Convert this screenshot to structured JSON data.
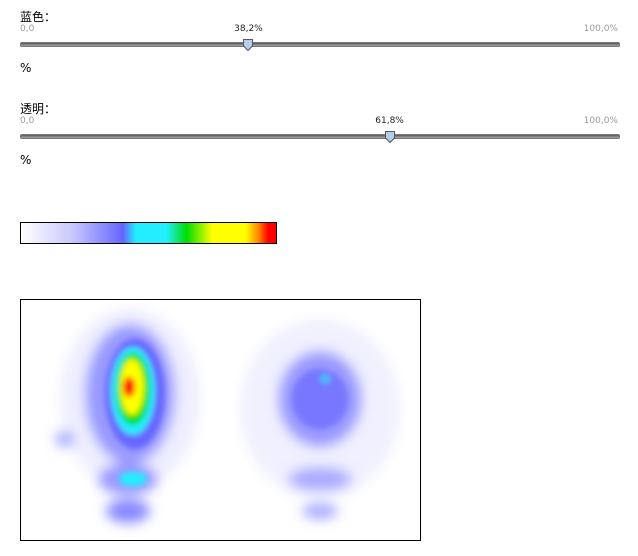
{
  "sliders": [
    {
      "label": "蓝色：",
      "min": 0,
      "min_label": "0,0",
      "max": 100,
      "max_label": "100,0%",
      "value": 38.2,
      "value_label": "38,2%",
      "unit": "%"
    },
    {
      "label": "透明：",
      "min": 0,
      "min_label": "0,0",
      "max": 100,
      "max_label": "100,0%",
      "value": 61.8,
      "value_label": "61,8%",
      "unit": "%"
    }
  ]
}
